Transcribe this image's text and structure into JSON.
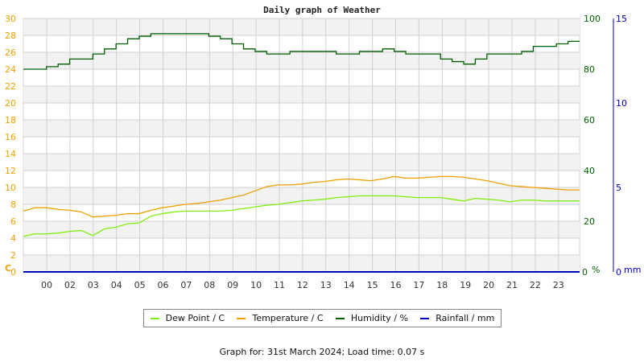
{
  "title": "Daily graph of Weather",
  "footer": "Graph for: 31st March 2024; Load time: 0.07 s",
  "colors": {
    "dew_point": "#80ee10",
    "temperature": "#f0a000",
    "humidity": "#006000",
    "rainfall": "#0000c0",
    "left_axis": "#f0a000",
    "humidity_axis": "#006000",
    "rain_axis": "#0000c0",
    "grid": "#d0d0d0",
    "band": "#f2f2f2"
  },
  "legend": {
    "items": [
      {
        "label": "Dew Point / C",
        "color": "#80ee10"
      },
      {
        "label": "Temperature / C",
        "color": "#f0a000"
      },
      {
        "label": "Humidity / %",
        "color": "#006000"
      },
      {
        "label": "Rainfall / mm",
        "color": "#0000c0"
      }
    ]
  },
  "chart_data": {
    "type": "line",
    "title": "Daily graph of Weather",
    "xlabel": "",
    "x_ticks": [
      "00",
      "02",
      "03",
      "04",
      "05",
      "06",
      "07",
      "08",
      "09",
      "10",
      "11",
      "12",
      "13",
      "14",
      "15",
      "16",
      "17",
      "18",
      "19",
      "20",
      "21",
      "22",
      "23"
    ],
    "axes": {
      "left": {
        "label": "C",
        "range": [
          0,
          30
        ],
        "ticks": [
          0,
          2,
          4,
          6,
          8,
          10,
          12,
          14,
          16,
          18,
          20,
          22,
          24,
          26,
          28,
          30
        ]
      },
      "right_humidity": {
        "label": "%",
        "range": [
          0,
          100
        ],
        "ticks": [
          0,
          20,
          40,
          60,
          80,
          100
        ]
      },
      "right_rain": {
        "label": "mm",
        "range": [
          0,
          15
        ],
        "ticks": [
          0,
          5,
          10,
          15
        ]
      }
    },
    "grid": true,
    "legend_position": "bottom",
    "x_hours": [
      0,
      0.5,
      1,
      1.5,
      2,
      2.5,
      3,
      3.5,
      4,
      4.5,
      5,
      5.5,
      6,
      6.5,
      7,
      7.5,
      8,
      8.5,
      9,
      9.5,
      10,
      10.5,
      11,
      11.5,
      12,
      12.5,
      13,
      13.5,
      14,
      14.5,
      15,
      15.5,
      16,
      16.5,
      17,
      17.5,
      18,
      18.5,
      19,
      19.5,
      20,
      20.5,
      21,
      21.5,
      22,
      22.5,
      23,
      23.5,
      24
    ],
    "series": [
      {
        "name": "Dew Point / C",
        "axis": "left",
        "values": [
          4.2,
          4.5,
          4.5,
          4.6,
          4.8,
          4.9,
          4.3,
          5.1,
          5.3,
          5.7,
          5.8,
          6.6,
          6.9,
          7.1,
          7.2,
          7.2,
          7.2,
          7.2,
          7.3,
          7.5,
          7.7,
          7.9,
          8.0,
          8.2,
          8.4,
          8.5,
          8.6,
          8.8,
          8.9,
          9.0,
          9.0,
          9.0,
          9.0,
          8.9,
          8.8,
          8.8,
          8.8,
          8.6,
          8.4,
          8.7,
          8.6,
          8.5,
          8.3,
          8.5,
          8.5,
          8.4,
          8.4,
          8.4,
          8.4
        ]
      },
      {
        "name": "Temperature / C",
        "axis": "left",
        "values": [
          7.2,
          7.6,
          7.6,
          7.4,
          7.3,
          7.1,
          6.5,
          6.6,
          6.7,
          6.9,
          6.9,
          7.3,
          7.6,
          7.8,
          8.0,
          8.1,
          8.3,
          8.5,
          8.8,
          9.1,
          9.6,
          10.1,
          10.3,
          10.3,
          10.4,
          10.6,
          10.7,
          10.9,
          11.0,
          10.9,
          10.8,
          11.0,
          11.3,
          11.1,
          11.1,
          11.2,
          11.3,
          11.3,
          11.2,
          11.0,
          10.8,
          10.5,
          10.2,
          10.1,
          10.0,
          9.9,
          9.8,
          9.7,
          9.7
        ]
      },
      {
        "name": "Humidity / %",
        "axis": "right_humidity",
        "values": [
          80,
          80,
          81,
          82,
          84,
          84,
          86,
          88,
          90,
          92,
          93,
          94,
          94,
          94,
          94,
          94,
          93,
          92,
          90,
          88,
          87,
          86,
          86,
          87,
          87,
          87,
          87,
          86,
          86,
          87,
          87,
          88,
          87,
          86,
          86,
          86,
          84,
          83,
          82,
          84,
          86,
          86,
          86,
          87,
          89,
          89,
          90,
          91,
          91
        ]
      },
      {
        "name": "Rainfall / mm",
        "axis": "right_rain",
        "values": [
          0,
          0,
          0,
          0,
          0,
          0,
          0,
          0,
          0,
          0,
          0,
          0,
          0,
          0,
          0,
          0,
          0,
          0,
          0,
          0,
          0,
          0,
          0,
          0,
          0,
          0,
          0,
          0,
          0,
          0,
          0,
          0,
          0,
          0,
          0,
          0,
          0,
          0,
          0,
          0,
          0,
          0,
          0,
          0,
          0,
          0,
          0,
          0,
          0
        ]
      }
    ]
  }
}
